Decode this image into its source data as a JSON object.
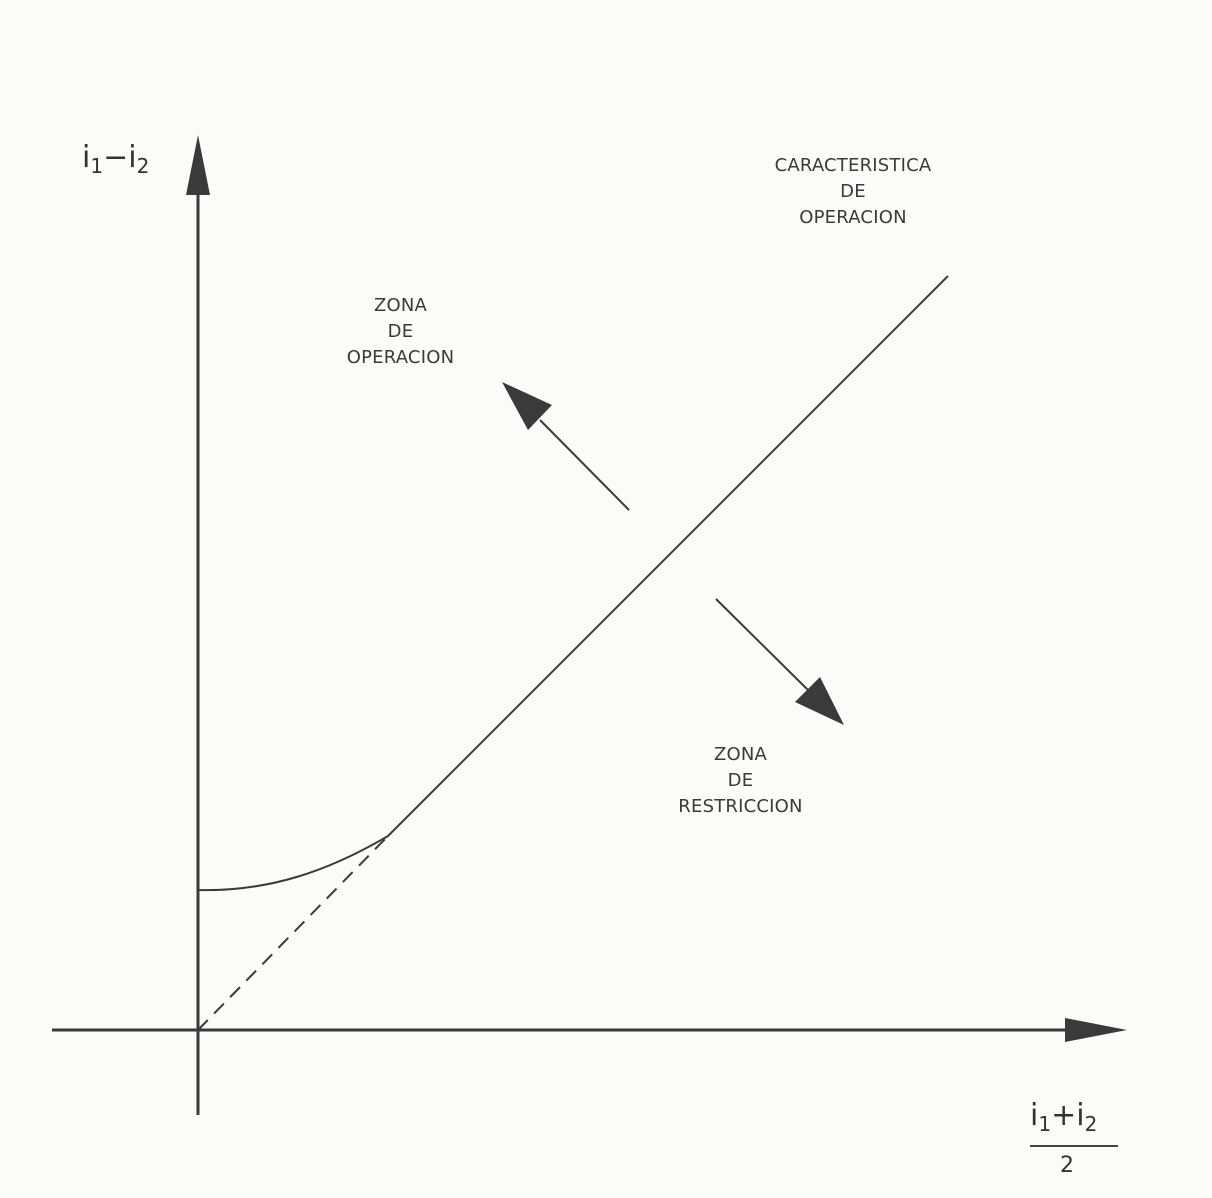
{
  "y_axis_label": {
    "i": "i",
    "sub1": "1",
    "op": "−",
    "i2": "i",
    "sub2": "2"
  },
  "x_axis_label": {
    "i": "i",
    "sub1": "1",
    "op": "+",
    "i2": "i",
    "sub2": "2",
    "denominator": "2"
  },
  "characteristic_label": [
    "CARACTERISTICA",
    "DE",
    "OPERACION"
  ],
  "operation_zone_label": [
    "ZONA",
    "DE",
    "OPERACION"
  ],
  "restriction_zone_label": [
    "ZONA",
    "DE",
    "RESTRICCION"
  ],
  "colors": {
    "line": "#3a3a3a",
    "background": "#fbfbf9"
  }
}
